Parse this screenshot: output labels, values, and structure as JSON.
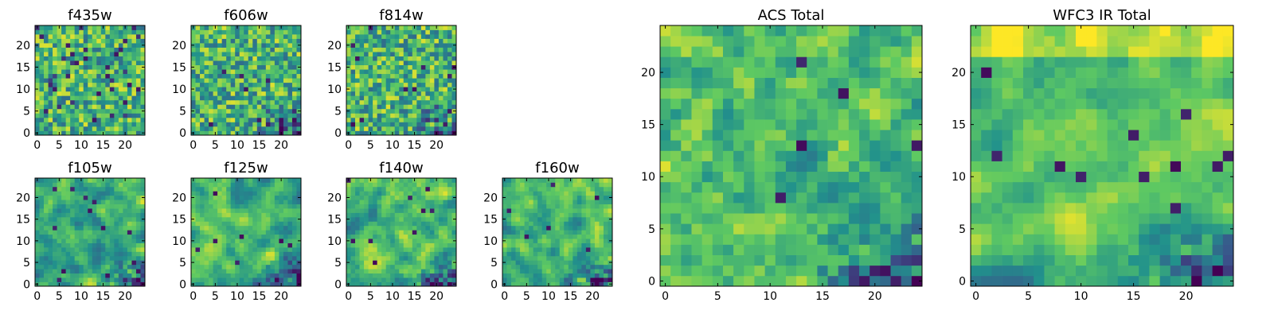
{
  "colormap": "viridis",
  "colormap_stops": [
    "#440154",
    "#3b528b",
    "#21918c",
    "#5ec962",
    "#fde725"
  ],
  "chart_data": [
    {
      "type": "heatmap",
      "title": "f435w",
      "grid_size": 25,
      "xlim": [
        0,
        24
      ],
      "ylim": [
        0,
        24
      ],
      "xticks": [
        "0",
        "5",
        "10",
        "15",
        "20"
      ],
      "yticks": [
        "0",
        "5",
        "10",
        "15",
        "20"
      ],
      "texture": "noisy",
      "low_region": "scattered",
      "seed": 11
    },
    {
      "type": "heatmap",
      "title": "f606w",
      "grid_size": 25,
      "xlim": [
        0,
        24
      ],
      "ylim": [
        0,
        24
      ],
      "xticks": [
        "0",
        "5",
        "10",
        "15",
        "20"
      ],
      "yticks": [
        "0",
        "5",
        "10",
        "15",
        "20"
      ],
      "texture": "noisy",
      "low_region": "bottom-right",
      "seed": 23
    },
    {
      "type": "heatmap",
      "title": "f814w",
      "grid_size": 25,
      "xlim": [
        0,
        24
      ],
      "ylim": [
        0,
        24
      ],
      "xticks": [
        "0",
        "5",
        "10",
        "15",
        "20"
      ],
      "yticks": [
        "0",
        "5",
        "10",
        "15",
        "20"
      ],
      "texture": "noisy",
      "low_region": "bottom-right",
      "seed": 37
    },
    {
      "type": "heatmap",
      "title": "f105w",
      "grid_size": 25,
      "xlim": [
        0,
        24
      ],
      "ylim": [
        0,
        24
      ],
      "xticks": [
        "0",
        "5",
        "10",
        "15",
        "20"
      ],
      "yticks": [
        "0",
        "5",
        "10",
        "15",
        "20"
      ],
      "texture": "smooth",
      "low_region": "bottom-right",
      "seed": 41
    },
    {
      "type": "heatmap",
      "title": "f125w",
      "grid_size": 25,
      "xlim": [
        0,
        24
      ],
      "ylim": [
        0,
        24
      ],
      "xticks": [
        "0",
        "5",
        "10",
        "15",
        "20"
      ],
      "yticks": [
        "0",
        "5",
        "10",
        "15",
        "20"
      ],
      "texture": "smooth",
      "low_region": "bottom-right",
      "seed": 53
    },
    {
      "type": "heatmap",
      "title": "f140w",
      "grid_size": 25,
      "xlim": [
        0,
        24
      ],
      "ylim": [
        0,
        24
      ],
      "xticks": [
        "0",
        "5",
        "10",
        "15",
        "20"
      ],
      "yticks": [
        "0",
        "5",
        "10",
        "15",
        "20"
      ],
      "texture": "smooth",
      "low_region": "bottom-right",
      "seed": 67
    },
    {
      "type": "heatmap",
      "title": "f160w",
      "grid_size": 25,
      "xlim": [
        0,
        24
      ],
      "ylim": [
        0,
        24
      ],
      "xticks": [
        "0",
        "5",
        "10",
        "15",
        "20"
      ],
      "yticks": [
        "0",
        "5",
        "10",
        "15",
        "20"
      ],
      "texture": "smooth",
      "low_region": "bottom-right",
      "seed": 79
    },
    {
      "type": "heatmap",
      "title": "ACS Total",
      "grid_size": 25,
      "xlim": [
        0,
        24
      ],
      "ylim": [
        0,
        24
      ],
      "xticks": [
        "0",
        "5",
        "10",
        "15",
        "20"
      ],
      "yticks": [
        "0",
        "5",
        "10",
        "15",
        "20"
      ],
      "texture": "medium",
      "low_region": "bottom-right",
      "seed": 83
    },
    {
      "type": "heatmap",
      "title": "WFC3 IR Total",
      "grid_size": 25,
      "xlim": [
        0,
        24
      ],
      "ylim": [
        0,
        24
      ],
      "xticks": [
        "0",
        "5",
        "10",
        "15",
        "20"
      ],
      "yticks": [
        "0",
        "5",
        "10",
        "15",
        "20"
      ],
      "texture": "smooth",
      "low_region": "bottom-right",
      "high_region": "top",
      "seed": 97
    }
  ]
}
